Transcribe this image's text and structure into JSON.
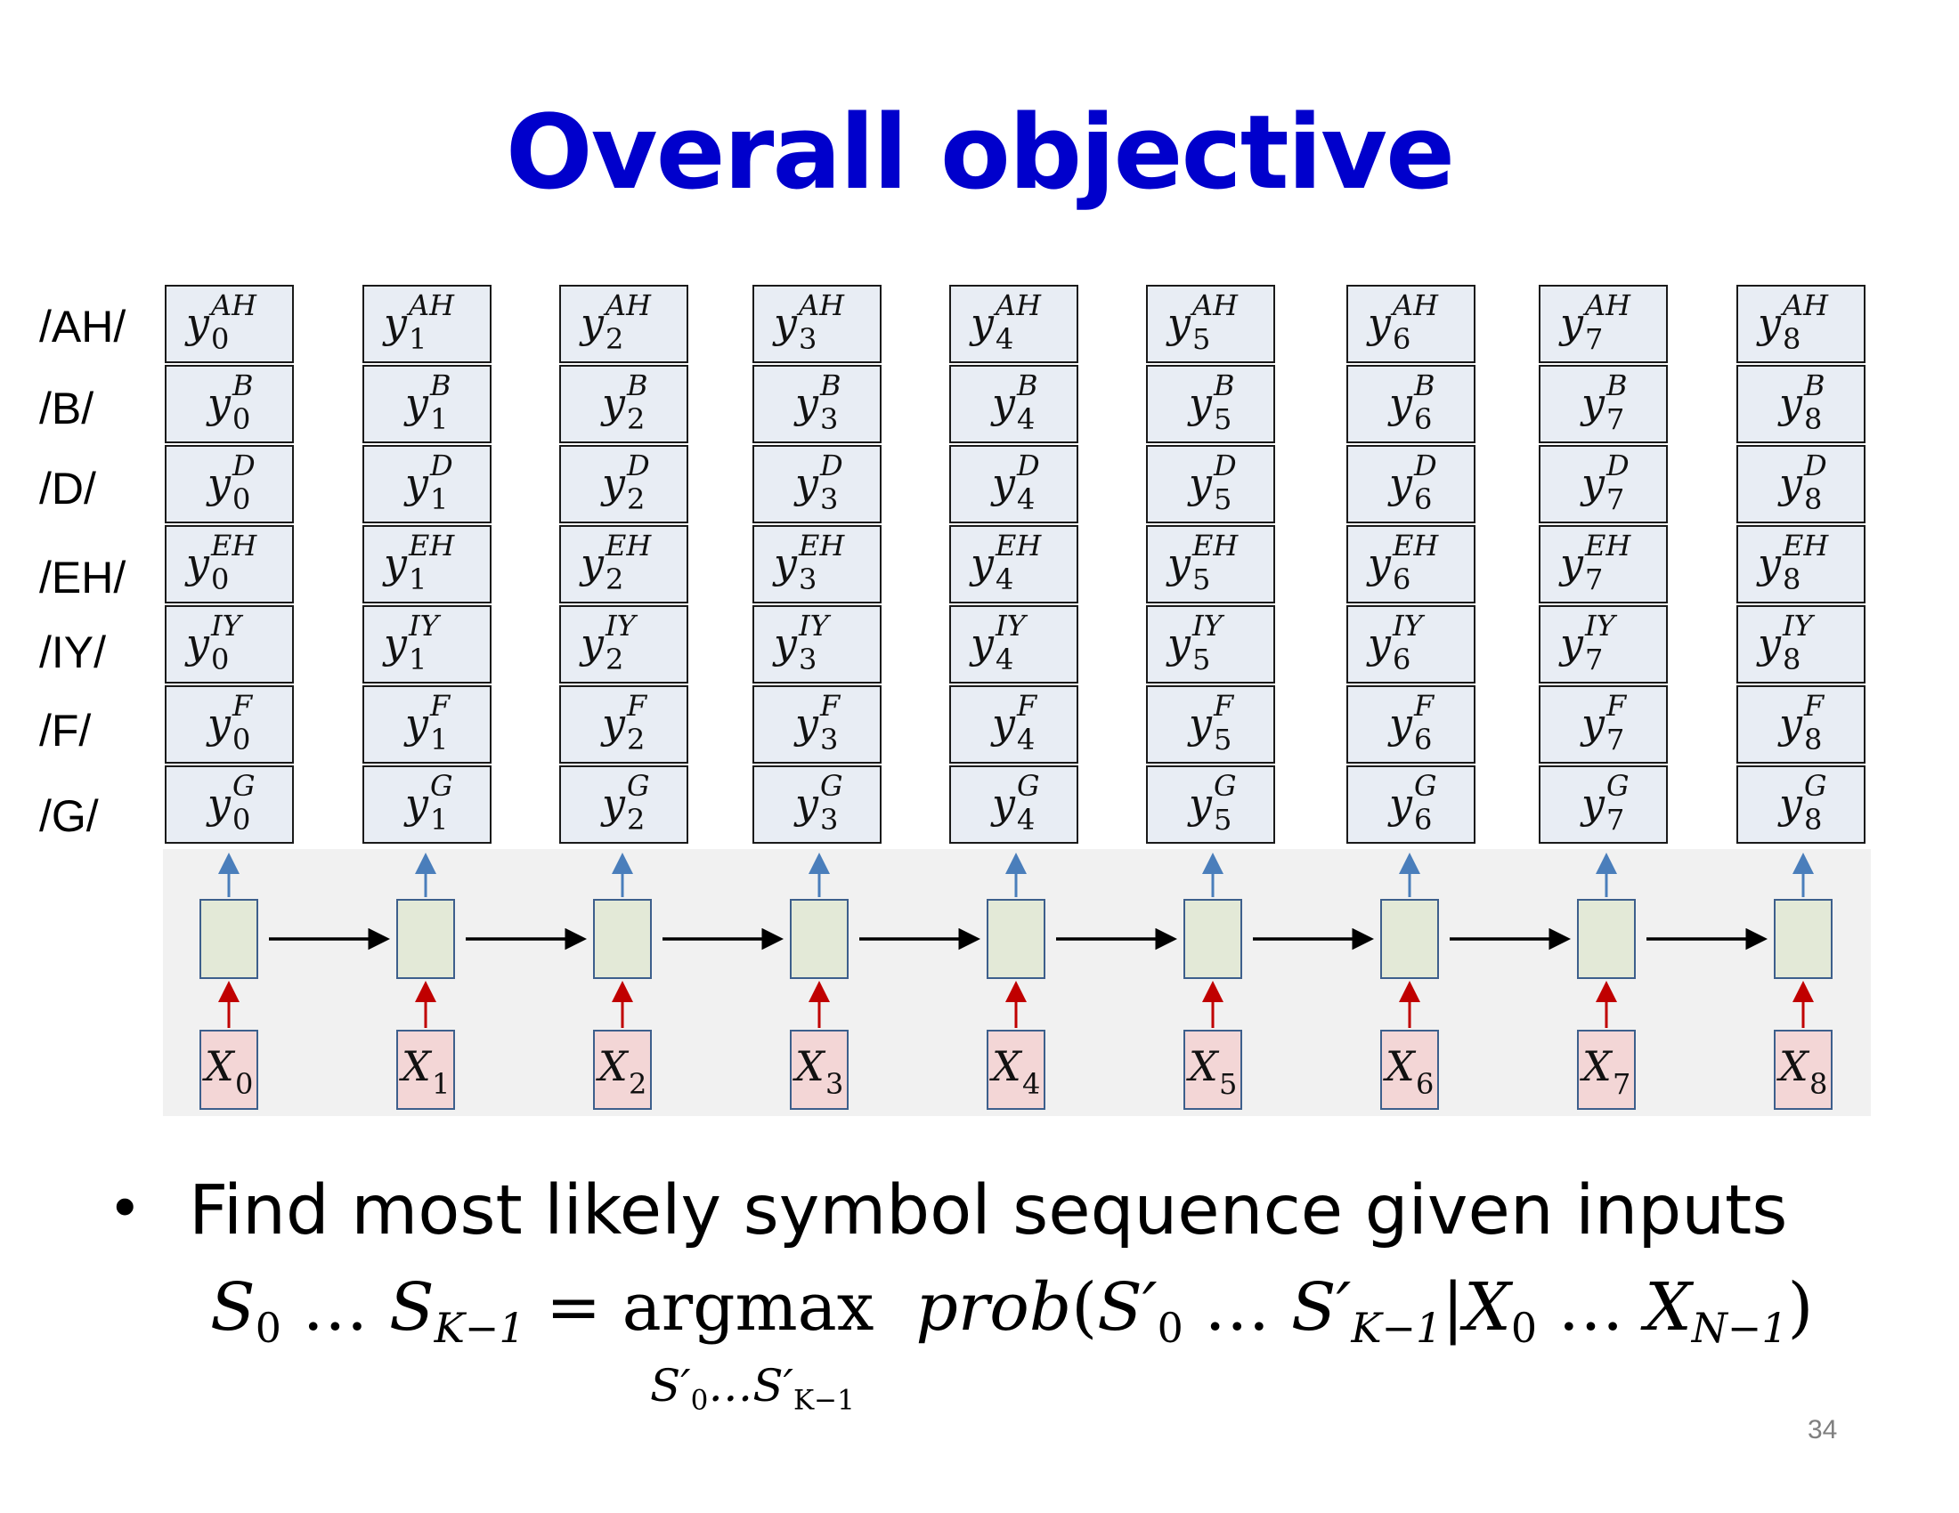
{
  "slide": {
    "title": "Overall objective",
    "page_number": "34"
  },
  "output_table": {
    "row_labels": [
      "/AH/",
      "/B/",
      "/D/",
      "/EH/",
      "/IY/",
      "/F/",
      "/G/"
    ],
    "symbols": [
      "AH",
      "B",
      "D",
      "EH",
      "IY",
      "F",
      "G"
    ],
    "variable": "y",
    "time_indices": [
      "0",
      "1",
      "2",
      "3",
      "4",
      "5",
      "6",
      "7",
      "8"
    ]
  },
  "network": {
    "inputs": [
      {
        "base": "X",
        "sub": "0"
      },
      {
        "base": "X",
        "sub": "1"
      },
      {
        "base": "X",
        "sub": "2"
      },
      {
        "base": "X",
        "sub": "3"
      },
      {
        "base": "X",
        "sub": "4"
      },
      {
        "base": "X",
        "sub": "5"
      },
      {
        "base": "X",
        "sub": "6"
      },
      {
        "base": "X",
        "sub": "7"
      },
      {
        "base": "X",
        "sub": "8"
      }
    ],
    "colors": {
      "hidden_fill": "#e3e9d7",
      "input_fill": "#f3d6d6",
      "output_cell_fill": "#e8edf4",
      "up_arrow": "#4a7ebb",
      "input_arrow": "#c00000",
      "recurrent_arrow": "#000000",
      "panel_bg": "#f1f1f1",
      "title": "#0000cc"
    }
  },
  "bullet": {
    "text": "Find most likely symbol sequence given inputs",
    "equation": {
      "lhs_s0": "S",
      "lhs_s0_sub": "0",
      "dots1": " … ",
      "lhs_sk": "S",
      "lhs_sk_sub": "K−1",
      "equals": " = argmax  ",
      "prob": "prob",
      "open_paren": "(",
      "s0p": "S′",
      "s0p_sub": "0",
      "dots2": " … ",
      "skp": "S′",
      "skp_sub": "K−1",
      "bar": "|",
      "x0": "X",
      "x0_sub": "0",
      "dots3": " … ",
      "xn": "X",
      "xn_sub": "N−1",
      "close_paren": ")"
    },
    "argmax_under": {
      "s0": "S′",
      "s0_sub": "0",
      "dots": "…",
      "sk": "S′",
      "sk_sub": "K−1"
    }
  }
}
